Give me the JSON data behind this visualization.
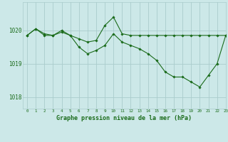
{
  "title": "Graphe pression niveau de la mer (hPa)",
  "background_color": "#cce8e8",
  "grid_color": "#aacccc",
  "line_color": "#1a6b1a",
  "marker_color": "#1a6b1a",
  "xlim": [
    -0.5,
    23
  ],
  "ylim": [
    1017.65,
    1020.85
  ],
  "yticks": [
    1018,
    1019,
    1020
  ],
  "xticks": [
    0,
    1,
    2,
    3,
    4,
    5,
    6,
    7,
    8,
    9,
    10,
    11,
    12,
    13,
    14,
    15,
    16,
    17,
    18,
    19,
    20,
    21,
    22,
    23
  ],
  "series1_x": [
    0,
    1,
    2,
    3,
    4,
    5,
    6,
    7,
    8,
    9,
    10,
    11,
    12,
    13,
    14,
    15,
    16,
    17,
    18,
    19,
    20,
    21,
    22,
    23
  ],
  "series1_y": [
    1019.85,
    1020.05,
    1019.9,
    1019.85,
    1020.0,
    1019.85,
    1019.75,
    1019.65,
    1019.7,
    1020.15,
    1020.4,
    1019.9,
    1019.85,
    1019.85,
    1019.85,
    1019.85,
    1019.85,
    1019.85,
    1019.85,
    1019.85,
    1019.85,
    1019.85,
    1019.85,
    1019.85
  ],
  "series2_x": [
    0,
    1,
    2,
    3,
    4,
    5,
    6,
    7,
    8,
    9,
    10,
    11,
    12,
    13,
    14,
    15,
    16,
    17,
    18,
    19,
    20,
    21,
    22,
    23
  ],
  "series2_y": [
    1019.85,
    1020.05,
    1019.85,
    1019.85,
    1019.95,
    1019.85,
    1019.5,
    1019.3,
    1019.4,
    1019.55,
    1019.9,
    1019.65,
    1019.55,
    1019.45,
    1019.3,
    1019.1,
    1018.75,
    1018.6,
    1018.6,
    1018.45,
    1018.3,
    1018.65,
    1019.0,
    1019.85
  ]
}
